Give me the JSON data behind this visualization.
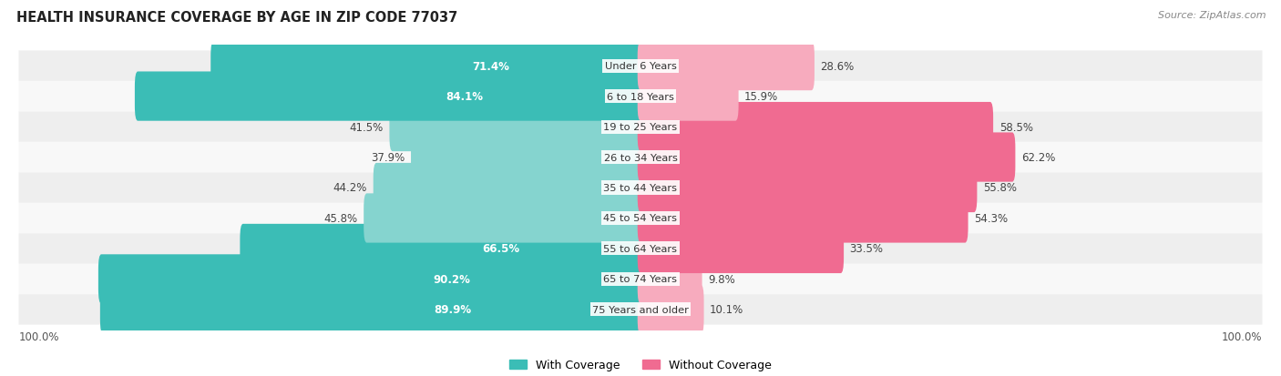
{
  "title": "HEALTH INSURANCE COVERAGE BY AGE IN ZIP CODE 77037",
  "source": "Source: ZipAtlas.com",
  "categories": [
    "Under 6 Years",
    "6 to 18 Years",
    "19 to 25 Years",
    "26 to 34 Years",
    "35 to 44 Years",
    "45 to 54 Years",
    "55 to 64 Years",
    "65 to 74 Years",
    "75 Years and older"
  ],
  "with_coverage": [
    71.4,
    84.1,
    41.5,
    37.9,
    44.2,
    45.8,
    66.5,
    90.2,
    89.9
  ],
  "without_coverage": [
    28.6,
    15.9,
    58.5,
    62.2,
    55.8,
    54.3,
    33.5,
    9.8,
    10.1
  ],
  "color_with_dark": "#3BBDB6",
  "color_with_light": "#85D4CF",
  "color_without_dark": "#F06B91",
  "color_without_light": "#F7ABBE",
  "bg_row_odd": "#EEEEEE",
  "bg_row_even": "#F8F8F8",
  "title_fontsize": 10.5,
  "label_fontsize": 8.5,
  "legend_fontsize": 9,
  "source_fontsize": 8,
  "with_coverage_dark_threshold": 55,
  "without_coverage_dark_threshold": 30
}
